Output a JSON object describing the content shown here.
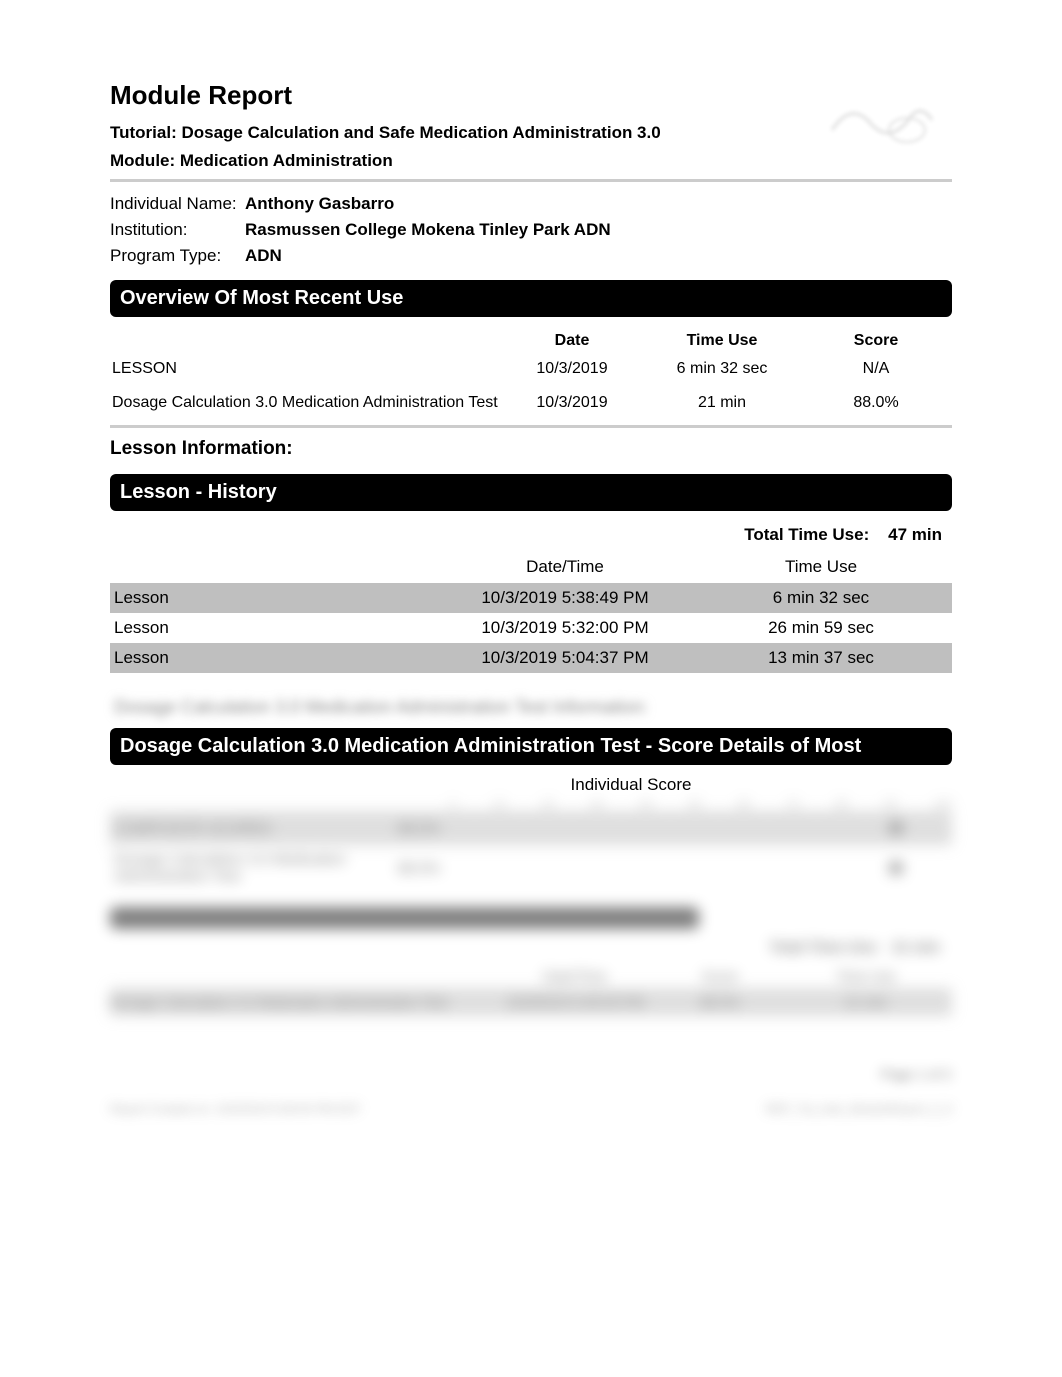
{
  "header": {
    "title": "Module Report",
    "tutorial_label": "Tutorial: Dosage Calculation and Safe Medication Administration 3.0",
    "module_label": "Module: Medication Administration"
  },
  "meta": {
    "individual_name_label": "Individual Name:",
    "individual_name": "Anthony Gasbarro",
    "institution_label": "Institution:",
    "institution": "Rasmussen College Mokena Tinley Park ADN",
    "program_type_label": "Program Type:",
    "program_type": "ADN"
  },
  "overview": {
    "section_title": "Overview Of Most Recent Use",
    "columns": {
      "date": "Date",
      "time_use": "Time Use",
      "score": "Score"
    },
    "rows": [
      {
        "name": "LESSON",
        "date": "10/3/2019",
        "time_use": "6 min 32 sec",
        "score": "N/A"
      },
      {
        "name": "Dosage Calculation 3.0 Medication Administration Test",
        "date": "10/3/2019",
        "time_use": "21 min",
        "score": "88.0%"
      }
    ]
  },
  "lesson_info": {
    "title": "Lesson Information:",
    "history_title": "Lesson - History",
    "total_time_label": "Total Time Use:",
    "total_time_value": "47 min",
    "columns": {
      "datetime": "Date/Time",
      "time_use": "Time Use"
    },
    "rows": [
      {
        "name": "Lesson",
        "datetime": "10/3/2019 5:38:49 PM",
        "time_use": "6 min 32 sec",
        "shaded": true
      },
      {
        "name": "Lesson",
        "datetime": "10/3/2019 5:32:00 PM",
        "time_use": "26 min 59 sec",
        "shaded": false
      },
      {
        "name": "Lesson",
        "datetime": "10/3/2019 5:04:37 PM",
        "time_use": "13 min 37 sec",
        "shaded": true
      }
    ]
  },
  "test_info": {
    "blurred_heading": "Dosage Calculation 3.0 Medication Administration Test Information:",
    "score_details_title": "Dosage Calculation 3.0 Medication Administration Test - Score Details of Most",
    "individual_score_label": "Individual Score",
    "axis_ticks": [
      "0",
      "10",
      "20",
      "30",
      "40",
      "50",
      "60",
      "70",
      "80",
      "90",
      "100"
    ],
    "score_rows": [
      {
        "label": "COMPOSITE SCORES",
        "value": "88.0%",
        "marker_pct": 88,
        "shaded": true
      },
      {
        "label": "Dosage Calculation 3.0 Medication Administration Test",
        "value": "88.0%",
        "marker_pct": 88,
        "shaded": false
      }
    ],
    "history_blurred": {
      "black_bar_text": "Dosage Calculation 3.0 Medication Administration Test - History",
      "total_label": "Total Time Use:",
      "total_value": "21 min",
      "col_dt": "Date/Time",
      "col_score": "Score",
      "col_time": "Time Use",
      "row": {
        "name": "Dosage Calculation 3.0 Medication Administration Test",
        "dt": "10/3/2019 5:45:00 PM",
        "score": "88.0%",
        "time": "21 min"
      }
    }
  },
  "footer": {
    "page": "Page 1 of 2",
    "left": "Report Created on: 10/3/2019 6:06:00 PM EDT",
    "right": "REP_Tut_Indv_ModuleReport_2_0"
  },
  "colors": {
    "black": "#000000",
    "shaded_row": "#bfbfbf",
    "divider": "#cccccc"
  }
}
